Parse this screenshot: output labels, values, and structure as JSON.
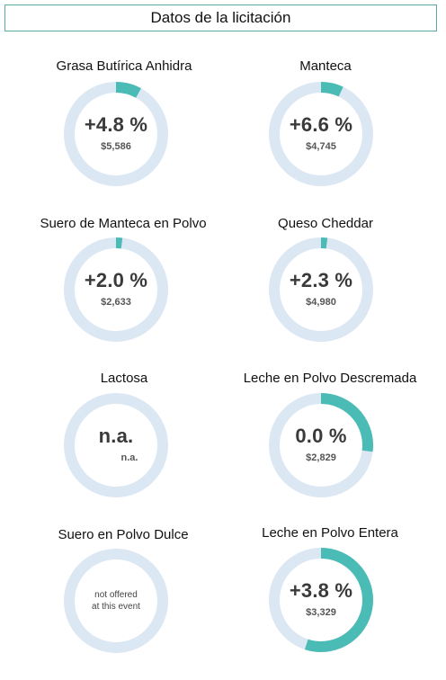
{
  "header": {
    "title": "Datos de la licitación"
  },
  "colors": {
    "track": "#dbe7f3",
    "accent": "#4bbbb6",
    "border": "#5aa9a3"
  },
  "products": [
    {
      "name": "Grasa Butírica Anhidra",
      "change": "+4.8 %",
      "price": "$5,586",
      "fill": 0.08
    },
    {
      "name": "Manteca",
      "change": "+6.6 %",
      "price": "$4,745",
      "fill": 0.07
    },
    {
      "name": "Suero de Manteca en Polvo",
      "change": "+2.0 %",
      "price": "$2,633",
      "fill": 0.02
    },
    {
      "name": "Queso Cheddar",
      "change": "+2.3 %",
      "price": "$4,980",
      "fill": 0.02
    },
    {
      "name": "Lactosa",
      "change": "n.a.",
      "price": "n.a.",
      "fill": 0
    },
    {
      "name": "Leche en Polvo Descremada",
      "change": "0.0 %",
      "price": "$2,829",
      "fill": 0.27
    },
    {
      "name": "Suero en Polvo Dulce",
      "note_line1": "not offered",
      "note_line2": "at this event",
      "fill": 0
    },
    {
      "name": "Leche en Polvo Entera",
      "change": "+3.8 %",
      "price": "$3,329",
      "fill": 0.55
    }
  ]
}
